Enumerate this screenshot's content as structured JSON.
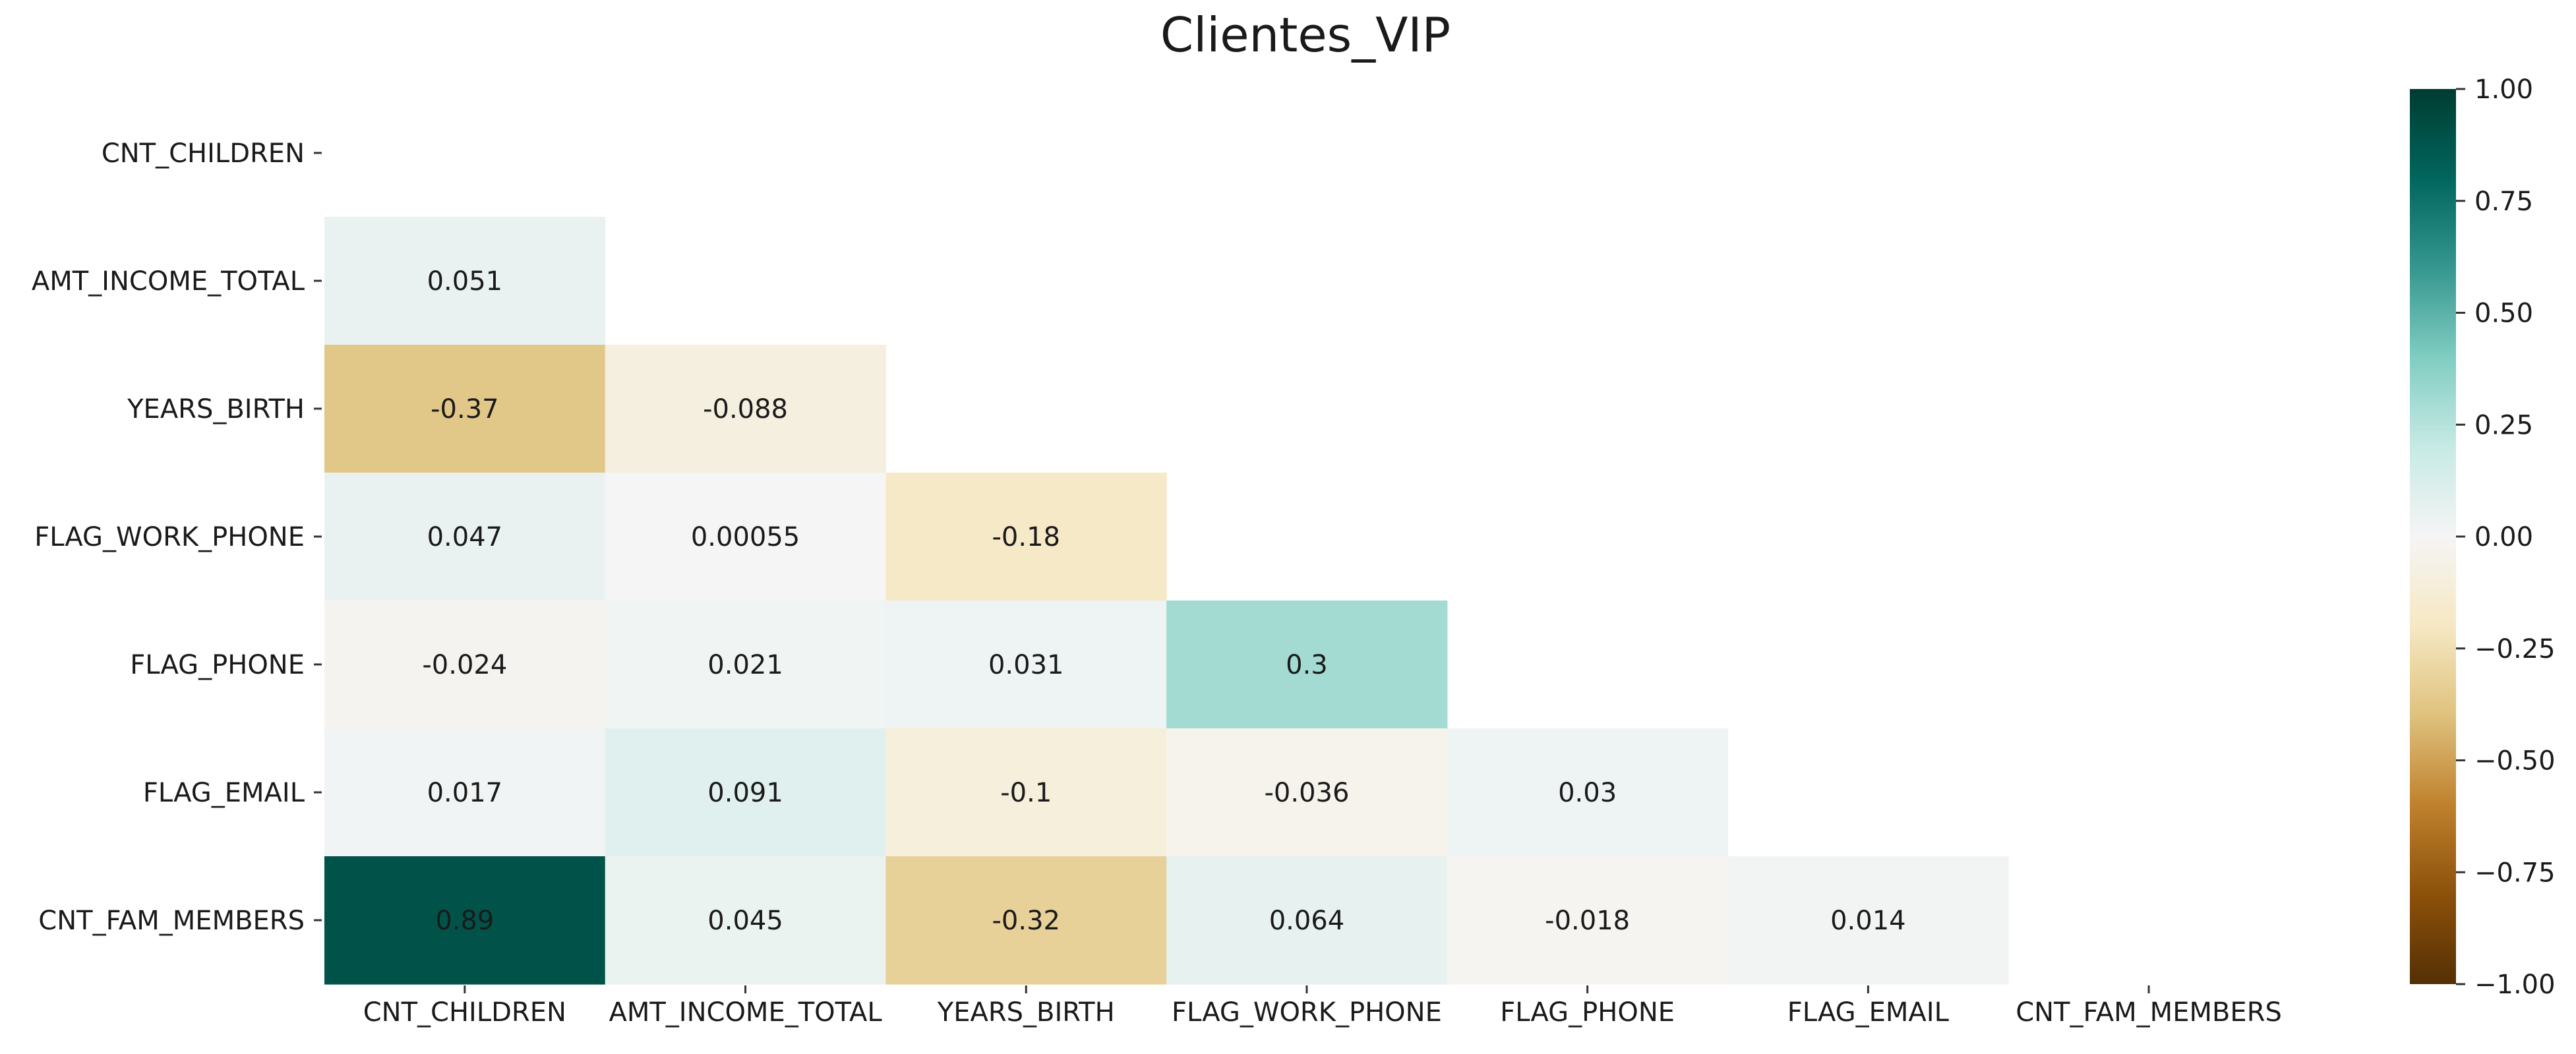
{
  "chart_data": {
    "type": "heatmap",
    "title": "Clientes_VIP",
    "variables": [
      "CNT_CHILDREN",
      "AMT_INCOME_TOTAL",
      "YEARS_BIRTH",
      "FLAG_WORK_PHONE",
      "FLAG_PHONE",
      "FLAG_EMAIL",
      "CNT_FAM_MEMBERS"
    ],
    "mask": "upper-triangle-including-diagonal",
    "matrix": [
      [
        null,
        null,
        null,
        null,
        null,
        null,
        null
      ],
      [
        "0.051",
        null,
        null,
        null,
        null,
        null,
        null
      ],
      [
        "-0.37",
        "-0.088",
        null,
        null,
        null,
        null,
        null
      ],
      [
        "0.047",
        "0.00055",
        "-0.18",
        null,
        null,
        null,
        null
      ],
      [
        "-0.024",
        "0.021",
        "0.031",
        "0.3",
        null,
        null,
        null
      ],
      [
        "0.017",
        "0.091",
        "-0.1",
        "-0.036",
        "0.03",
        null,
        null
      ],
      [
        "0.89",
        "0.045",
        "-0.32",
        "0.064",
        "-0.018",
        "0.014",
        null
      ]
    ],
    "colormap": "BrBG",
    "vmin": -1.0,
    "vmax": 1.0,
    "colorbar_ticks": [
      "1.00",
      "0.75",
      "0.50",
      "0.25",
      "0.00",
      "−0.25",
      "−0.50",
      "−0.75",
      "−1.00"
    ],
    "colorbar_tick_values": [
      1.0,
      0.75,
      0.5,
      0.25,
      0.0,
      -0.25,
      -0.5,
      -0.75,
      -1.0
    ],
    "grid": false
  }
}
